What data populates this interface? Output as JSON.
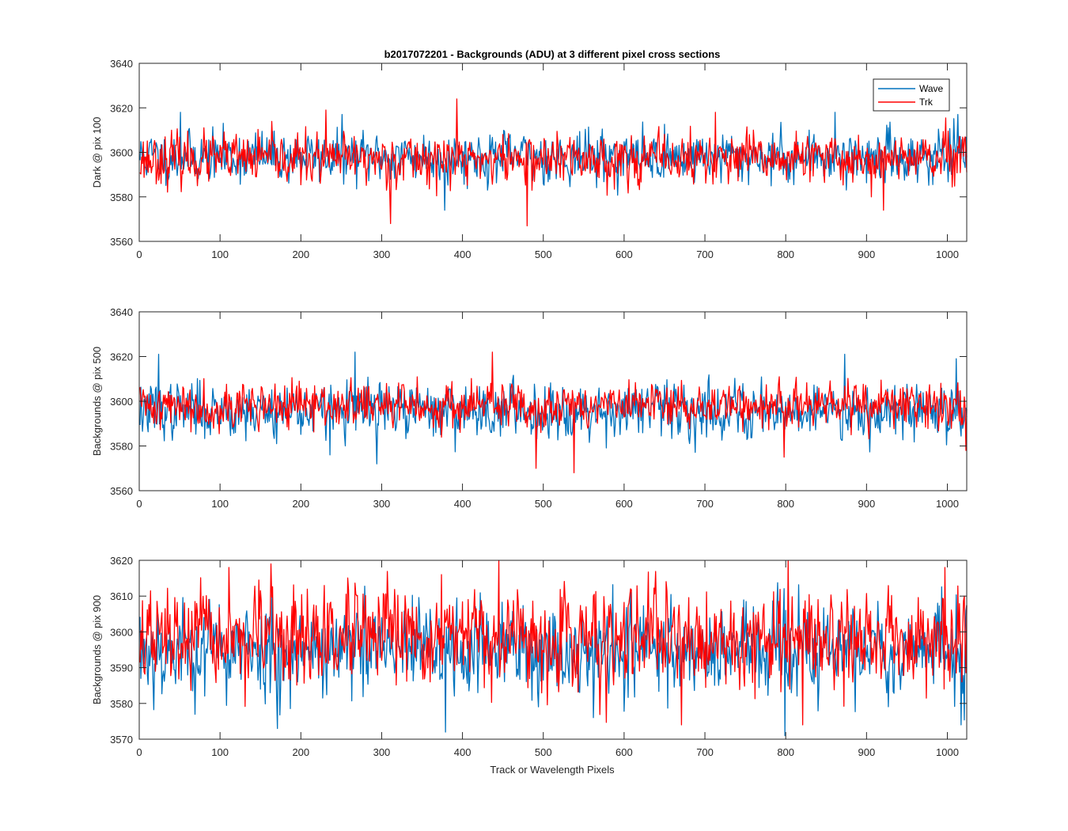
{
  "figure": {
    "title": "b2017072201 - Backgrounds (ADU) at 3 different pixel cross sections",
    "xlabel": "Track or Wavelength Pixels"
  },
  "legend": {
    "position": "top-right",
    "entries": [
      {
        "name": "Wave",
        "color": "#0072BD"
      },
      {
        "name": "Trk",
        "color": "#FF0000"
      }
    ]
  },
  "chart_data": [
    {
      "type": "line",
      "ylabel": "Dark @ pix 100",
      "xlim": [
        0,
        1024
      ],
      "ylim": [
        3560,
        3640
      ],
      "xticks": [
        0,
        100,
        200,
        300,
        400,
        500,
        600,
        700,
        800,
        900,
        1000
      ],
      "yticks": [
        3560,
        3580,
        3600,
        3620,
        3640
      ],
      "grid": false,
      "legend": true,
      "series": [
        {
          "name": "Wave",
          "color": "#0072BD",
          "n_points": 1024,
          "mean": 3598,
          "spread": 5.5,
          "seed": 11,
          "spikes": [
            [
              50,
              3618
            ],
            [
              250,
              3617
            ],
            [
              377,
              3574
            ],
            [
              860,
              3618
            ],
            [
              1012,
              3617
            ]
          ]
        },
        {
          "name": "Trk",
          "color": "#FF0000",
          "n_points": 1024,
          "mean": 3597,
          "spread": 5.5,
          "seed": 23,
          "spikes": [
            [
              230,
              3619
            ],
            [
              310,
              3568
            ],
            [
              392,
              3624
            ],
            [
              479,
              3567
            ],
            [
              712,
              3618
            ],
            [
              905,
              3580
            ],
            [
              920,
              3574
            ]
          ]
        }
      ]
    },
    {
      "type": "line",
      "ylabel": "Backgrounds @ pix 500",
      "xlim": [
        0,
        1024
      ],
      "ylim": [
        3560,
        3640
      ],
      "xticks": [
        0,
        100,
        200,
        300,
        400,
        500,
        600,
        700,
        800,
        900,
        1000
      ],
      "yticks": [
        3560,
        3580,
        3600,
        3620,
        3640
      ],
      "grid": false,
      "legend": false,
      "series": [
        {
          "name": "Wave",
          "color": "#0072BD",
          "n_points": 1024,
          "mean": 3596,
          "spread": 6,
          "seed": 37,
          "spikes": [
            [
              23,
              3621
            ],
            [
              266,
              3622
            ],
            [
              235,
              3576
            ],
            [
              293,
              3572
            ],
            [
              872,
              3621
            ],
            [
              1010,
              3619
            ]
          ]
        },
        {
          "name": "Trk",
          "color": "#FF0000",
          "n_points": 1024,
          "mean": 3598,
          "spread": 5,
          "seed": 41,
          "spikes": [
            [
              436,
              3622
            ],
            [
              490,
              3570
            ],
            [
              537,
              3568
            ],
            [
              797,
              3575
            ],
            [
              1022,
              3578
            ]
          ]
        }
      ]
    },
    {
      "type": "line",
      "ylabel": "Backgrounds @ pix 900",
      "xlim": [
        0,
        1024
      ],
      "ylim": [
        3570,
        3620
      ],
      "xticks": [
        0,
        100,
        200,
        300,
        400,
        500,
        600,
        700,
        800,
        900,
        1000
      ],
      "yticks": [
        3570,
        3580,
        3590,
        3600,
        3610,
        3620
      ],
      "grid": false,
      "legend": false,
      "series": [
        {
          "name": "Wave",
          "color": "#0072BD",
          "n_points": 1024,
          "mean": 3595,
          "spread": 6.5,
          "seed": 53,
          "spikes": [
            [
              170,
              3573
            ],
            [
              378,
              3572
            ],
            [
              798,
              3571
            ],
            [
              1016,
              3574
            ]
          ]
        },
        {
          "name": "Trk",
          "color": "#FF0000",
          "n_points": 1024,
          "mean": 3598,
          "spread": 6.5,
          "seed": 67,
          "spikes": [
            [
              110,
              3618
            ],
            [
              162,
              3619
            ],
            [
              373,
              3616
            ],
            [
              670,
              3574
            ],
            [
              802,
              3620
            ],
            [
              820,
              3574
            ],
            [
              996,
              3618
            ],
            [
              1020,
              3610
            ]
          ]
        }
      ]
    }
  ]
}
